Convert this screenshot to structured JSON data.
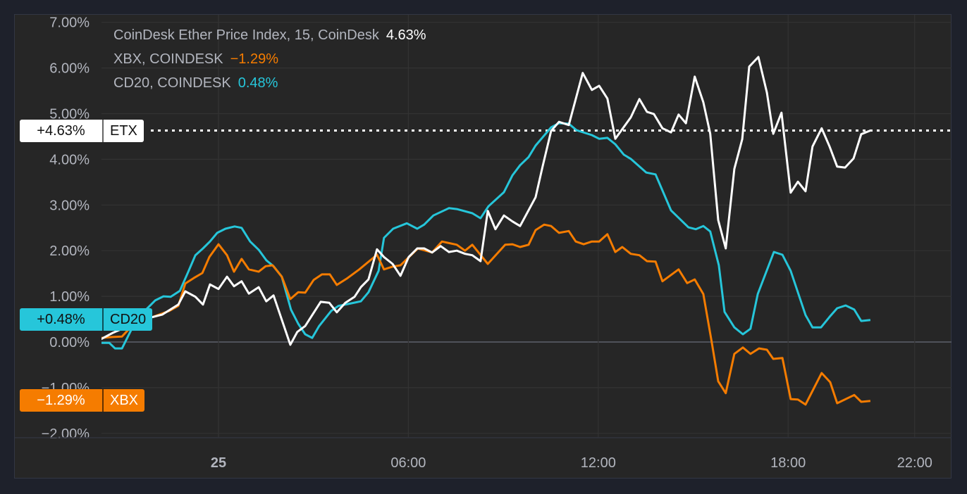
{
  "colors": {
    "etx": "#ffffff",
    "xbx": "#f57c00",
    "cd20": "#26c6da",
    "zero_line": "#5d606b",
    "grid": "#333333",
    "text": "#b2b5be"
  },
  "legend": [
    {
      "name": "CoinDesk Ether Price Index, 15, CoinDesk",
      "value": "4.63%"
    },
    {
      "name": "XBX, COINDESK",
      "value": "−1.29%"
    },
    {
      "name": "CD20, COINDESK",
      "value": "0.48%"
    }
  ],
  "badges": {
    "etx": {
      "pct": "+4.63%",
      "label": "ETX"
    },
    "cd20": {
      "pct": "+0.48%",
      "label": "CD20"
    },
    "xbx": {
      "pct": "−1.29%",
      "label": "XBX"
    }
  },
  "chart_data": {
    "type": "line",
    "title": "",
    "x_unit": "hours from 25 00:00",
    "xlim": [
      -3.72,
      22.3
    ],
    "ylim": [
      -2.2,
      7.1
    ],
    "y_ticks": [
      7,
      6,
      5,
      4,
      3,
      2,
      1,
      0,
      -1,
      -2
    ],
    "y_tick_labels": [
      "7.00%",
      "6.00%",
      "5.00%",
      "4.00%",
      "3.00%",
      "2.00%",
      "1.00%",
      "0.00%",
      "−1.00%",
      "−2.00%"
    ],
    "x_ticks": [
      {
        "x": 0,
        "label": "25",
        "bold": true
      },
      {
        "x": 6,
        "label": "06:00"
      },
      {
        "x": 12,
        "label": "12:00"
      },
      {
        "x": 18,
        "label": "18:00"
      },
      {
        "x": 22,
        "label": "22:00"
      }
    ],
    "grid": true,
    "last_value_line": {
      "series": "ETX",
      "value": 4.63
    },
    "series": [
      {
        "name": "ETX",
        "key": "etx",
        "points": [
          [
            -3.72,
            0.06
          ],
          [
            -3.34,
            0.2
          ],
          [
            -3.05,
            0.29
          ],
          [
            -2.29,
            0.51
          ],
          [
            -1.78,
            0.6
          ],
          [
            -1.27,
            0.82
          ],
          [
            -1.05,
            1.11
          ],
          [
            -0.73,
            0.99
          ],
          [
            -0.49,
            0.82
          ],
          [
            -0.27,
            1.26
          ],
          [
            0,
            1.16
          ],
          [
            0.27,
            1.43
          ],
          [
            0.49,
            1.22
          ],
          [
            0.73,
            1.33
          ],
          [
            0.96,
            1.06
          ],
          [
            1.27,
            1.2
          ],
          [
            1.51,
            0.89
          ],
          [
            1.74,
            1.02
          ],
          [
            2.27,
            -0.06
          ],
          [
            2.49,
            0.22
          ],
          [
            2.74,
            0.35
          ],
          [
            3.23,
            0.88
          ],
          [
            3.5,
            0.86
          ],
          [
            3.74,
            0.65
          ],
          [
            4.01,
            0.86
          ],
          [
            4.3,
            0.99
          ],
          [
            4.5,
            1.2
          ],
          [
            4.74,
            1.37
          ],
          [
            5.01,
            2.03
          ],
          [
            5.23,
            1.86
          ],
          [
            5.5,
            1.71
          ],
          [
            5.75,
            1.45
          ],
          [
            6.01,
            1.86
          ],
          [
            6.28,
            2.05
          ],
          [
            6.5,
            2.05
          ],
          [
            6.75,
            1.96
          ],
          [
            7.02,
            2.1
          ],
          [
            7.28,
            1.97
          ],
          [
            7.53,
            2.0
          ],
          [
            7.79,
            1.93
          ],
          [
            8.02,
            1.9
          ],
          [
            8.28,
            1.77
          ],
          [
            8.51,
            2.87
          ],
          [
            8.75,
            2.47
          ],
          [
            9.02,
            2.77
          ],
          [
            9.29,
            2.64
          ],
          [
            9.53,
            2.54
          ],
          [
            10.02,
            3.17
          ],
          [
            10.24,
            3.84
          ],
          [
            10.51,
            4.62
          ],
          [
            10.76,
            4.82
          ],
          [
            11.07,
            4.75
          ],
          [
            11.51,
            5.89
          ],
          [
            11.8,
            5.52
          ],
          [
            12.03,
            5.61
          ],
          [
            12.29,
            5.33
          ],
          [
            12.54,
            4.45
          ],
          [
            13.03,
            4.92
          ],
          [
            13.3,
            5.32
          ],
          [
            13.54,
            5.04
          ],
          [
            13.76,
            4.99
          ],
          [
            14.03,
            4.68
          ],
          [
            14.3,
            4.59
          ],
          [
            14.54,
            4.98
          ],
          [
            14.77,
            4.79
          ],
          [
            15.05,
            5.81
          ],
          [
            15.32,
            5.25
          ],
          [
            15.54,
            4.56
          ],
          [
            15.79,
            2.67
          ],
          [
            16.03,
            2.05
          ],
          [
            16.3,
            3.79
          ],
          [
            16.55,
            4.44
          ],
          [
            16.77,
            6.03
          ],
          [
            17.06,
            6.24
          ],
          [
            17.33,
            5.46
          ],
          [
            17.53,
            4.56
          ],
          [
            17.79,
            5.02
          ],
          [
            18.08,
            3.27
          ],
          [
            18.31,
            3.51
          ],
          [
            18.55,
            3.3
          ],
          [
            18.77,
            4.28
          ],
          [
            19.06,
            4.68
          ],
          [
            19.31,
            4.28
          ],
          [
            19.55,
            3.84
          ],
          [
            19.8,
            3.82
          ],
          [
            20.07,
            4.02
          ],
          [
            20.31,
            4.55
          ],
          [
            20.6,
            4.63
          ]
        ]
      },
      {
        "name": "CD20",
        "key": "cd20",
        "points": [
          [
            -3.72,
            -0.02
          ],
          [
            -3.45,
            -0.02
          ],
          [
            -3.27,
            -0.14
          ],
          [
            -3.05,
            -0.14
          ],
          [
            -2.74,
            0.29
          ],
          [
            -2.29,
            0.71
          ],
          [
            -2.0,
            0.91
          ],
          [
            -1.74,
            1.0
          ],
          [
            -1.51,
            0.99
          ],
          [
            -1.22,
            1.12
          ],
          [
            -0.96,
            1.53
          ],
          [
            -0.73,
            1.9
          ],
          [
            -0.49,
            2.05
          ],
          [
            -0.27,
            2.2
          ],
          [
            -0.04,
            2.39
          ],
          [
            0.22,
            2.48
          ],
          [
            0.51,
            2.53
          ],
          [
            0.73,
            2.5
          ],
          [
            1.0,
            2.2
          ],
          [
            1.27,
            2.02
          ],
          [
            1.51,
            1.79
          ],
          [
            1.74,
            1.66
          ],
          [
            2.0,
            1.43
          ],
          [
            2.29,
            0.71
          ],
          [
            2.52,
            0.4
          ],
          [
            2.74,
            0.17
          ],
          [
            2.96,
            0.09
          ],
          [
            3.18,
            0.35
          ],
          [
            3.56,
            0.68
          ],
          [
            3.79,
            0.79
          ],
          [
            4.08,
            0.83
          ],
          [
            4.5,
            0.89
          ],
          [
            4.74,
            1.09
          ],
          [
            5.06,
            1.56
          ],
          [
            5.23,
            2.28
          ],
          [
            5.52,
            2.48
          ],
          [
            5.95,
            2.6
          ],
          [
            6.28,
            2.48
          ],
          [
            6.5,
            2.57
          ],
          [
            6.79,
            2.77
          ],
          [
            7.28,
            2.93
          ],
          [
            7.53,
            2.91
          ],
          [
            8.02,
            2.82
          ],
          [
            8.28,
            2.71
          ],
          [
            8.53,
            2.97
          ],
          [
            9.02,
            3.28
          ],
          [
            9.29,
            3.65
          ],
          [
            9.53,
            3.87
          ],
          [
            9.8,
            4.05
          ],
          [
            10.02,
            4.3
          ],
          [
            10.51,
            4.7
          ],
          [
            10.76,
            4.79
          ],
          [
            11.07,
            4.78
          ],
          [
            11.31,
            4.64
          ],
          [
            11.8,
            4.53
          ],
          [
            12.03,
            4.45
          ],
          [
            12.29,
            4.47
          ],
          [
            12.54,
            4.33
          ],
          [
            12.81,
            4.1
          ],
          [
            13.03,
            4.01
          ],
          [
            13.52,
            3.71
          ],
          [
            13.81,
            3.67
          ],
          [
            14.3,
            2.88
          ],
          [
            14.85,
            2.51
          ],
          [
            15.08,
            2.47
          ],
          [
            15.32,
            2.54
          ],
          [
            15.54,
            2.42
          ],
          [
            15.81,
            1.68
          ],
          [
            15.99,
            0.66
          ],
          [
            16.3,
            0.32
          ],
          [
            16.57,
            0.17
          ],
          [
            16.81,
            0.29
          ],
          [
            17.04,
            1.05
          ],
          [
            17.55,
            1.97
          ],
          [
            17.82,
            1.91
          ],
          [
            18.08,
            1.56
          ],
          [
            18.55,
            0.59
          ],
          [
            18.77,
            0.32
          ],
          [
            19.04,
            0.32
          ],
          [
            19.31,
            0.55
          ],
          [
            19.55,
            0.74
          ],
          [
            19.82,
            0.8
          ],
          [
            20.09,
            0.71
          ],
          [
            20.31,
            0.46
          ],
          [
            20.6,
            0.48
          ]
        ]
      },
      {
        "name": "XBX",
        "key": "xbx",
        "points": [
          [
            -3.72,
            0.09
          ],
          [
            -3.34,
            0.11
          ],
          [
            -3.05,
            0.12
          ],
          [
            -2.74,
            0.35
          ],
          [
            -2.07,
            0.55
          ],
          [
            -1.56,
            0.68
          ],
          [
            -1.27,
            0.79
          ],
          [
            -1.05,
            1.28
          ],
          [
            -0.78,
            1.4
          ],
          [
            -0.51,
            1.51
          ],
          [
            -0.29,
            1.86
          ],
          [
            0,
            2.14
          ],
          [
            0.27,
            1.9
          ],
          [
            0.49,
            1.54
          ],
          [
            0.73,
            1.82
          ],
          [
            0.96,
            1.59
          ],
          [
            1.27,
            1.54
          ],
          [
            1.49,
            1.66
          ],
          [
            1.71,
            1.68
          ],
          [
            2.0,
            1.43
          ],
          [
            2.27,
            0.94
          ],
          [
            2.52,
            1.09
          ],
          [
            2.74,
            1.08
          ],
          [
            3.01,
            1.36
          ],
          [
            3.27,
            1.48
          ],
          [
            3.52,
            1.48
          ],
          [
            3.74,
            1.25
          ],
          [
            4.08,
            1.4
          ],
          [
            4.45,
            1.59
          ],
          [
            4.85,
            1.82
          ],
          [
            5.01,
            1.91
          ],
          [
            5.23,
            1.59
          ],
          [
            5.5,
            1.65
          ],
          [
            5.75,
            1.68
          ],
          [
            6.08,
            1.9
          ],
          [
            6.3,
            2.05
          ],
          [
            6.75,
            1.96
          ],
          [
            7.06,
            2.2
          ],
          [
            7.53,
            2.13
          ],
          [
            7.79,
            2.0
          ],
          [
            8.02,
            2.13
          ],
          [
            8.51,
            1.71
          ],
          [
            9.06,
            2.13
          ],
          [
            9.29,
            2.14
          ],
          [
            9.53,
            2.08
          ],
          [
            9.8,
            2.13
          ],
          [
            10.02,
            2.45
          ],
          [
            10.29,
            2.57
          ],
          [
            10.51,
            2.54
          ],
          [
            10.76,
            2.39
          ],
          [
            11.07,
            2.43
          ],
          [
            11.29,
            2.2
          ],
          [
            11.54,
            2.14
          ],
          [
            11.8,
            2.2
          ],
          [
            12.03,
            2.2
          ],
          [
            12.29,
            2.36
          ],
          [
            12.54,
            1.97
          ],
          [
            12.76,
            2.08
          ],
          [
            13.03,
            1.93
          ],
          [
            13.3,
            1.9
          ],
          [
            13.54,
            1.77
          ],
          [
            13.81,
            1.76
          ],
          [
            14.03,
            1.33
          ],
          [
            14.54,
            1.59
          ],
          [
            14.81,
            1.29
          ],
          [
            15.05,
            1.37
          ],
          [
            15.32,
            1.05
          ],
          [
            15.59,
            -0.02
          ],
          [
            15.79,
            -0.86
          ],
          [
            16.03,
            -1.12
          ],
          [
            16.3,
            -0.26
          ],
          [
            16.57,
            -0.12
          ],
          [
            16.81,
            -0.26
          ],
          [
            17.08,
            -0.14
          ],
          [
            17.33,
            -0.17
          ],
          [
            17.53,
            -0.37
          ],
          [
            17.82,
            -0.35
          ],
          [
            18.08,
            -1.25
          ],
          [
            18.31,
            -1.26
          ],
          [
            18.55,
            -1.37
          ],
          [
            19.06,
            -0.68
          ],
          [
            19.33,
            -0.88
          ],
          [
            19.55,
            -1.34
          ],
          [
            20.09,
            -1.16
          ],
          [
            20.31,
            -1.31
          ],
          [
            20.6,
            -1.29
          ]
        ]
      }
    ]
  }
}
